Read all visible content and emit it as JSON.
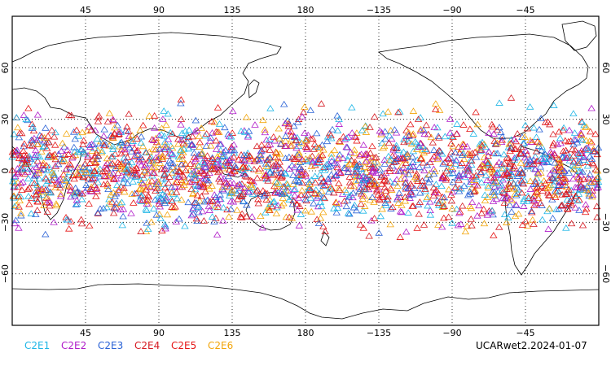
{
  "map": {
    "lon_ticks_top": [
      "45",
      "90",
      "135",
      "180",
      "−135",
      "−90",
      "−45"
    ],
    "lon_ticks_bottom": [
      "45",
      "90",
      "135",
      "180",
      "−135",
      "−90",
      "−45"
    ],
    "lat_ticks_left": [
      "60",
      "30",
      "0",
      "−30",
      "−60"
    ],
    "lat_ticks_right": [
      "60",
      "30",
      "0",
      "−30",
      "−60"
    ],
    "lon_values": [
      45,
      90,
      135,
      180,
      225,
      270,
      315
    ],
    "lat_values": [
      60,
      30,
      0,
      -30,
      -60
    ],
    "lon_range": [
      0,
      360
    ],
    "lat_range": [
      -90,
      90
    ],
    "grid": "dotted",
    "marker": "triangle-outline",
    "obs_lat_band": [
      -45,
      45
    ],
    "series": [
      {
        "name": "C2E1",
        "color": "#1fb6e6"
      },
      {
        "name": "C2E2",
        "color": "#b01cc9"
      },
      {
        "name": "C2E3",
        "color": "#2a62d6"
      },
      {
        "name": "C2E4",
        "color": "#d61a22"
      },
      {
        "name": "C2E5",
        "color": "#e51515"
      },
      {
        "name": "C2E6",
        "color": "#f2a50a"
      }
    ]
  },
  "footer": {
    "label": "UCARwet2.2024-01-07"
  }
}
